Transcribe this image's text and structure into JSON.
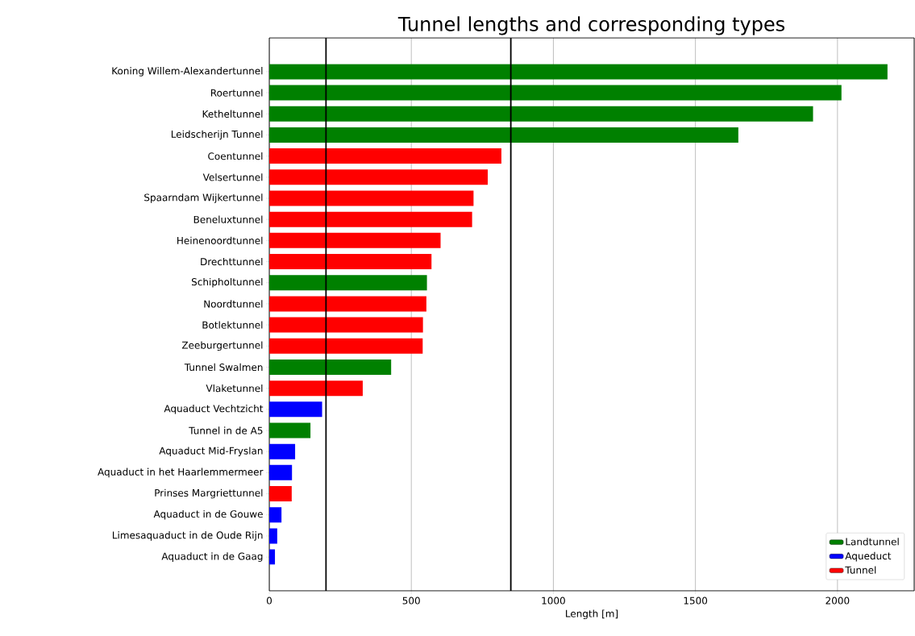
{
  "chart_data": {
    "type": "bar",
    "orientation": "horizontal",
    "title": "Tunnel lengths and corresponding types",
    "xlabel": "Length [m]",
    "categories": [
      "Koning Willem-Alexandertunnel",
      "Roertunnel",
      "Ketheltunnel",
      "Leidscherijn Tunnel",
      "Coentunnel",
      "Velsertunnel",
      "Spaarndam Wijkertunnel",
      "Beneluxtunnel",
      "Heinenoordtunnel",
      "Drechttunnel",
      "Schipholtunnel",
      "Noordtunnel",
      "Botlektunnel",
      "Zeeburgertunnel",
      "Tunnel Swalmen",
      "Vlaketunnel",
      "Aquaduct Vechtzicht",
      "Tunnel in de A5",
      "Aquaduct Mid-Fryslan",
      "Aquaduct in het Haarlemmermeer",
      "Prinses Margriettunnel",
      "Aquaduct in de Gouwe",
      "Limesaquaduct in de Oude Rijn",
      "Aquaduct in de Gaag"
    ],
    "series": [
      {
        "name": "Landtunnel",
        "color": "#008000",
        "values": [
          2176,
          2014,
          1914,
          1651,
          null,
          null,
          null,
          null,
          null,
          null,
          555,
          null,
          null,
          null,
          429,
          null,
          null,
          145,
          null,
          null,
          null,
          null,
          null,
          null
        ]
      },
      {
        "name": "Aqueduct",
        "color": "#0000ff",
        "values": [
          null,
          null,
          null,
          null,
          null,
          null,
          null,
          null,
          null,
          null,
          null,
          null,
          null,
          null,
          null,
          null,
          186,
          null,
          91,
          80,
          null,
          43,
          28,
          20
        ]
      },
      {
        "name": "Tunnel",
        "color": "#ff0000",
        "values": [
          null,
          null,
          null,
          null,
          817,
          769,
          719,
          714,
          603,
          571,
          null,
          553,
          541,
          540,
          null,
          329,
          null,
          null,
          null,
          null,
          79,
          null,
          null,
          null
        ]
      }
    ],
    "xlim": [
      0,
      2270
    ],
    "xticks": [
      0,
      500,
      1000,
      1500,
      2000
    ],
    "ref_lines": [
      {
        "axis": "x",
        "value": 200,
        "color": "#000000"
      },
      {
        "axis": "x",
        "value": 850,
        "color": "#000000"
      }
    ],
    "grid": "x",
    "legend": "bottom right"
  }
}
